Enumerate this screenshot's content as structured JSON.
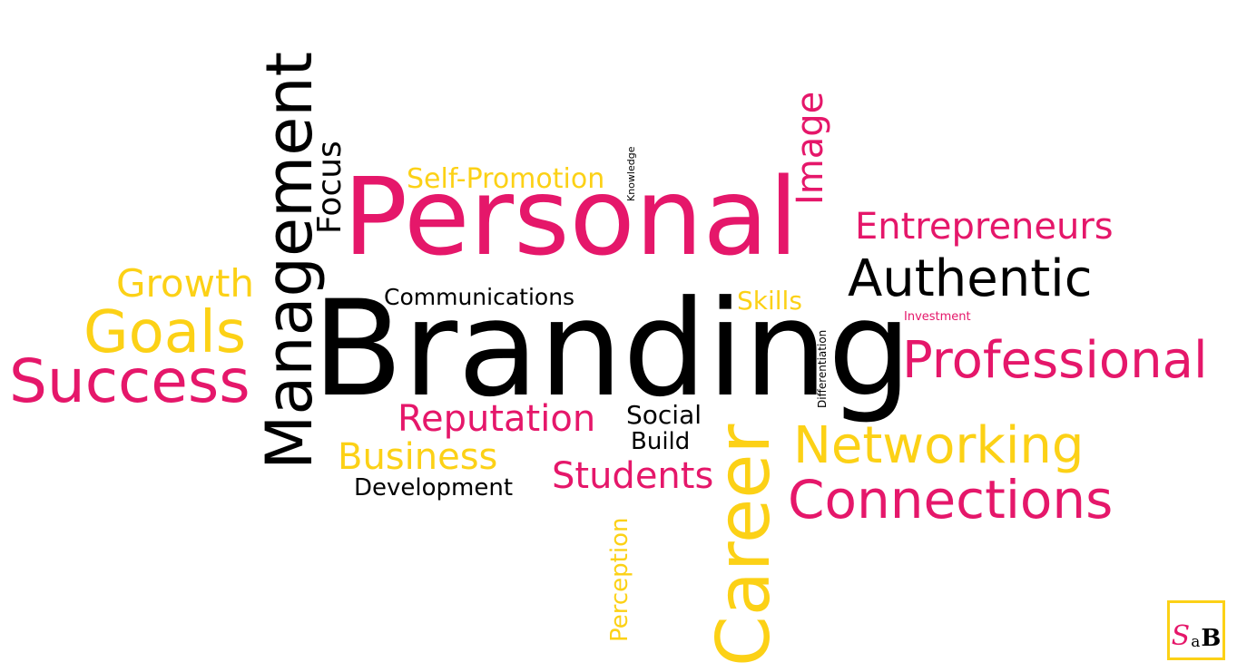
{
  "colors": {
    "pink": "#e5176a",
    "yellow": "#fcd116",
    "black": "#000000"
  },
  "words": {
    "personal": "Personal",
    "branding": "Branding",
    "management": "Management",
    "focus": "Focus",
    "self_promotion": "Self-Promotion",
    "knowledge": "Knowledge",
    "image": "Image",
    "entrepreneurs": "Entrepreneurs",
    "authentic": "Authentic",
    "growth": "Growth",
    "goals": "Goals",
    "success": "Success",
    "communications": "Communications",
    "skills": "Skills",
    "differentiation": "Differentiation",
    "investment": "Investment",
    "professional": "Professional",
    "reputation": "Reputation",
    "social": "Social",
    "build": "Build",
    "business": "Business",
    "development": "Development",
    "students": "Students",
    "career": "Career",
    "networking": "Networking",
    "connections": "Connections",
    "perception": "Perception"
  },
  "logo": {
    "letter1": "S",
    "letter2": "a",
    "letter3": "B"
  }
}
